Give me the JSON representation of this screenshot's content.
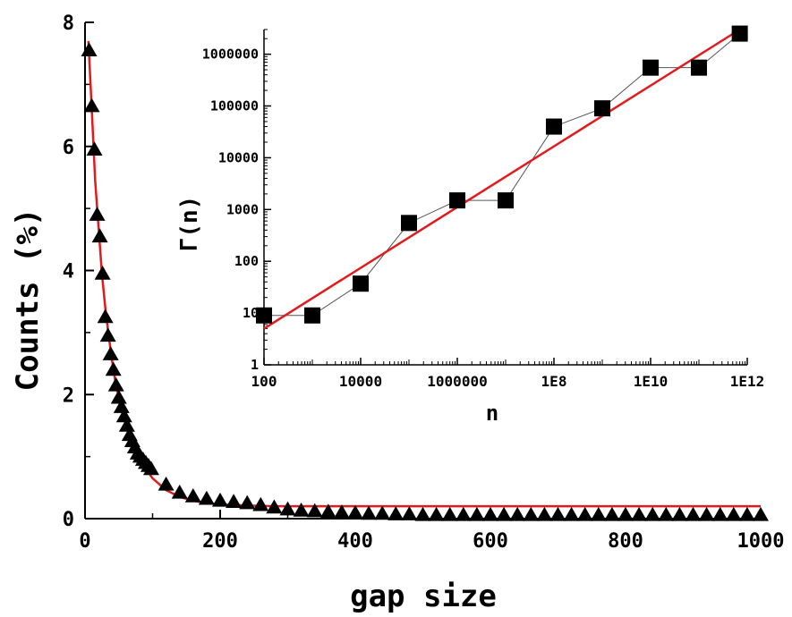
{
  "chart_data": [
    {
      "type": "scatter",
      "title": "",
      "xlabel": "gap size",
      "ylabel": "Counts (%)",
      "xlim": [
        0,
        1000
      ],
      "ylim": [
        0,
        8
      ],
      "x_ticks": [
        "0",
        "200",
        "400",
        "600",
        "800",
        "1000"
      ],
      "y_ticks": [
        "0",
        "2",
        "4",
        "6",
        "8"
      ],
      "grid": false,
      "series": [
        {
          "kind": "markers",
          "marker": "triangle",
          "color": "#000000",
          "x": [
            6,
            10,
            14,
            18,
            22,
            26,
            30,
            34,
            38,
            42,
            46,
            50,
            54,
            58,
            62,
            66,
            70,
            74,
            78,
            82,
            86,
            90,
            94,
            98,
            120,
            140,
            160,
            180,
            200,
            220,
            240,
            260,
            280,
            300,
            320,
            340,
            360,
            380,
            400,
            420,
            440,
            460,
            480,
            500,
            520,
            540,
            560,
            580,
            600,
            620,
            640,
            660,
            680,
            700,
            720,
            740,
            760,
            780,
            800,
            820,
            840,
            860,
            880,
            900,
            920,
            940,
            960,
            980,
            1000
          ],
          "y": [
            7.55,
            6.65,
            5.95,
            4.9,
            4.55,
            3.95,
            3.25,
            2.95,
            2.65,
            2.4,
            2.15,
            1.95,
            1.8,
            1.65,
            1.5,
            1.35,
            1.25,
            1.15,
            1.05,
            1.0,
            0.95,
            0.9,
            0.85,
            0.8,
            0.55,
            0.42,
            0.36,
            0.32,
            0.29,
            0.27,
            0.25,
            0.22,
            0.18,
            0.15,
            0.13,
            0.12,
            0.11,
            0.1,
            0.09,
            0.08,
            0.08,
            0.07,
            0.07,
            0.06,
            0.06,
            0.06,
            0.06,
            0.06,
            0.06,
            0.06,
            0.06,
            0.06,
            0.06,
            0.06,
            0.06,
            0.06,
            0.06,
            0.06,
            0.06,
            0.06,
            0.06,
            0.06,
            0.06,
            0.06,
            0.06,
            0.06,
            0.06,
            0.06,
            0.06
          ]
        },
        {
          "kind": "fit-line",
          "color": "#e31a1c",
          "x": [
            5,
            10,
            15,
            20,
            25,
            30,
            35,
            40,
            45,
            50,
            60,
            70,
            80,
            90,
            100,
            120,
            140,
            160,
            180,
            200,
            240,
            280,
            320,
            400,
            500,
            600,
            700,
            800,
            900,
            1000
          ],
          "y": [
            7.7,
            6.6,
            5.45,
            4.7,
            3.95,
            3.4,
            2.95,
            2.55,
            2.2,
            1.95,
            1.55,
            1.22,
            0.98,
            0.8,
            0.65,
            0.46,
            0.35,
            0.29,
            0.25,
            0.23,
            0.21,
            0.2,
            0.2,
            0.2,
            0.2,
            0.2,
            0.2,
            0.2,
            0.2,
            0.2
          ]
        }
      ]
    },
    {
      "type": "scatter",
      "title": "",
      "xlabel": "n",
      "ylabel": "Γ(n)",
      "x_scale": "log",
      "y_scale": "log",
      "xlim": [
        100,
        1000000000000.0
      ],
      "ylim": [
        1,
        3000000
      ],
      "x_ticks": [
        "100",
        "10000",
        "1000000",
        "1E8",
        "1E10",
        "1E12"
      ],
      "y_ticks": [
        "1",
        "10",
        "100",
        "1000",
        "10000",
        "100000",
        "1000000"
      ],
      "grid": false,
      "series": [
        {
          "kind": "markers",
          "marker": "square",
          "color": "#000000",
          "x": [
            100,
            1000,
            10000,
            100000,
            1000000,
            10000000,
            100000000,
            1000000000,
            10000000000,
            100000000000,
            700000000000
          ],
          "y": [
            9,
            9,
            37,
            550,
            1500,
            1500,
            40000,
            90000,
            550000,
            550000,
            2500000
          ]
        },
        {
          "kind": "fit-line",
          "color": "#e31a1c",
          "x": [
            100,
            700000000000
          ],
          "y": [
            5,
            3000000
          ]
        }
      ]
    }
  ]
}
